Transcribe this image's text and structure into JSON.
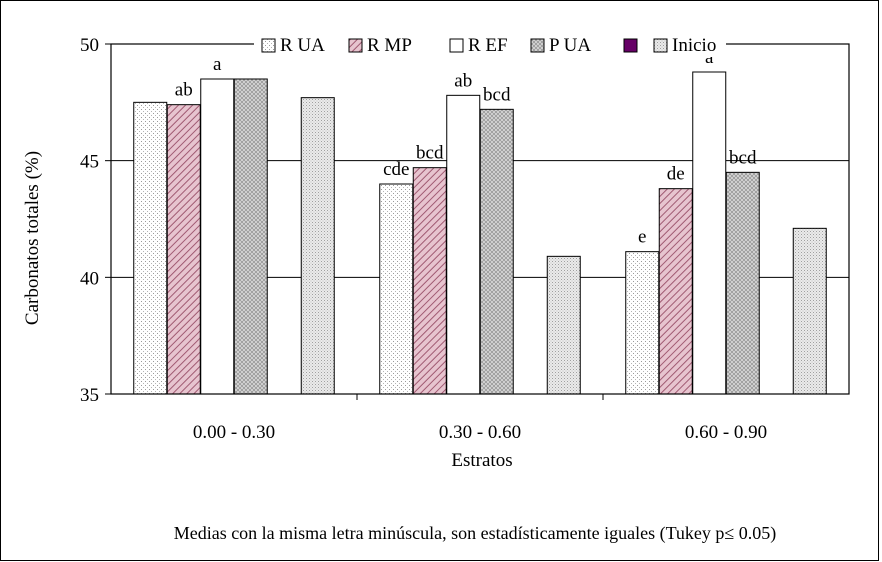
{
  "chart_data": {
    "type": "bar",
    "title": "",
    "xlabel": "Estratos",
    "ylabel": "Carbonatos totales (%)",
    "ylim": [
      35,
      50
    ],
    "yticks": [
      "35",
      "40",
      "45",
      "50"
    ],
    "grid": "horizontal",
    "legend_position": "top",
    "categories": [
      "0.00 - 0.30",
      "0.30 - 0.60",
      "0.60 - 0.90"
    ],
    "series": [
      {
        "name": "R UA",
        "values": [
          47.5,
          44.0,
          41.1
        ],
        "labels": [
          "",
          "cde",
          "e"
        ],
        "pattern": "dots",
        "color": "#ffffff"
      },
      {
        "name": "R MP",
        "values": [
          47.4,
          44.7,
          43.8
        ],
        "labels": [
          "ab",
          "bcd",
          "de"
        ],
        "pattern": "diagonal",
        "color": "#cc8899"
      },
      {
        "name": "R EF",
        "values": [
          48.5,
          47.8,
          48.8
        ],
        "labels": [
          "a",
          "ab",
          "a"
        ],
        "pattern": "none",
        "color": "#ffffff"
      },
      {
        "name": "P UA",
        "values": [
          48.5,
          47.2,
          44.5
        ],
        "labels": [
          "",
          "bcd",
          "bcd"
        ],
        "pattern": "crosshatch",
        "color": "#e8e8e8"
      },
      {
        "name": "",
        "values": [
          null,
          null,
          null
        ],
        "labels": [
          "",
          "",
          ""
        ],
        "pattern": "solid",
        "color": "#660066"
      },
      {
        "name": "Inicio",
        "values": [
          47.7,
          40.9,
          42.1
        ],
        "labels": [
          "",
          "",
          ""
        ],
        "pattern": "fine",
        "color": "#eeeeee"
      }
    ],
    "annotation": "Medias con la misma letra minúscula, son estadísticamente iguales (Tukey p≤ 0.05)"
  }
}
